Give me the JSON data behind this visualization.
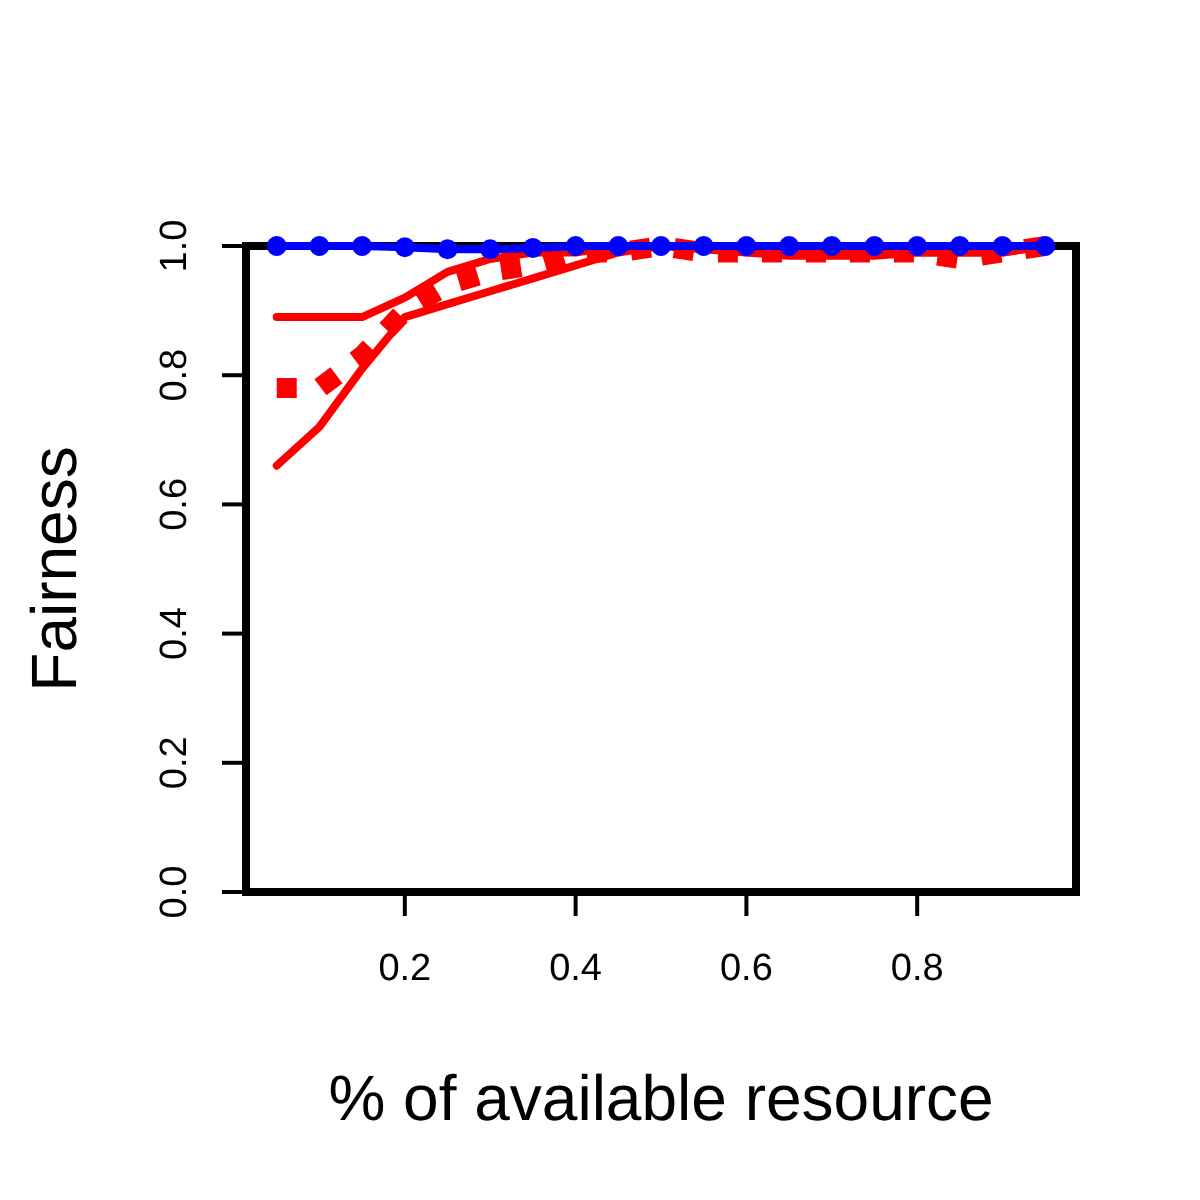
{
  "chart_data": {
    "type": "line",
    "xlabel": "% of available resource",
    "ylabel": "Fairness",
    "x": [
      0.05,
      0.1,
      0.15,
      0.2,
      0.25,
      0.3,
      0.35,
      0.4,
      0.45,
      0.5,
      0.55,
      0.6,
      0.65,
      0.7,
      0.75,
      0.8,
      0.85,
      0.9,
      0.95
    ],
    "xlim": [
      0.014,
      0.986
    ],
    "xticks": [
      {
        "value": 0.2,
        "label": "0.2"
      },
      {
        "value": 0.4,
        "label": "0.4"
      },
      {
        "value": 0.6,
        "label": "0.6"
      },
      {
        "value": 0.8,
        "label": "0.8"
      }
    ],
    "ylim": [
      0,
      1
    ],
    "yticks": [
      {
        "value": 0,
        "label": "0.0"
      },
      {
        "value": 0.2,
        "label": "0.2"
      },
      {
        "value": 0.4,
        "label": "0.4"
      },
      {
        "value": 0.6,
        "label": "0.6"
      },
      {
        "value": 0.8,
        "label": "0.8"
      },
      {
        "value": 1,
        "label": "1.0"
      }
    ],
    "grid": false,
    "series": [
      {
        "color": "#ff0000",
        "line_style": "solid",
        "marker": "none",
        "values": [
          0.89,
          0.89,
          0.89,
          0.92,
          0.96,
          0.98,
          0.99,
          0.99,
          1.0,
          1.0,
          0.995,
          0.99,
          0.985,
          0.985,
          0.985,
          0.99,
          0.99,
          0.99,
          1.0
        ]
      },
      {
        "color": "#ff0000",
        "line_style": "dotted",
        "marker": "none",
        "values": [
          0.78,
          0.78,
          0.83,
          0.9,
          0.94,
          0.96,
          0.97,
          0.99,
          0.99,
          1.0,
          0.99,
          0.99,
          0.99,
          0.99,
          0.99,
          0.99,
          0.98,
          0.99,
          1.0
        ]
      },
      {
        "color": "#ff0000",
        "line_style": "solid",
        "marker": "none",
        "values": [
          0.66,
          0.72,
          0.81,
          0.89,
          0.91,
          0.93,
          0.95,
          0.97,
          0.99,
          1.0,
          1.0,
          0.99,
          0.99,
          0.99,
          0.99,
          0.99,
          0.99,
          0.99,
          1.0
        ]
      },
      {
        "color": "#0000ff",
        "line_style": "solid",
        "marker": "circle",
        "values": [
          1.0,
          1.0,
          1.0,
          0.998,
          0.995,
          0.995,
          0.997,
          1.0,
          1.0,
          1.0,
          1.0,
          1.0,
          1.0,
          1.0,
          1.0,
          1.0,
          1.0,
          1.0,
          1.0
        ]
      }
    ]
  }
}
